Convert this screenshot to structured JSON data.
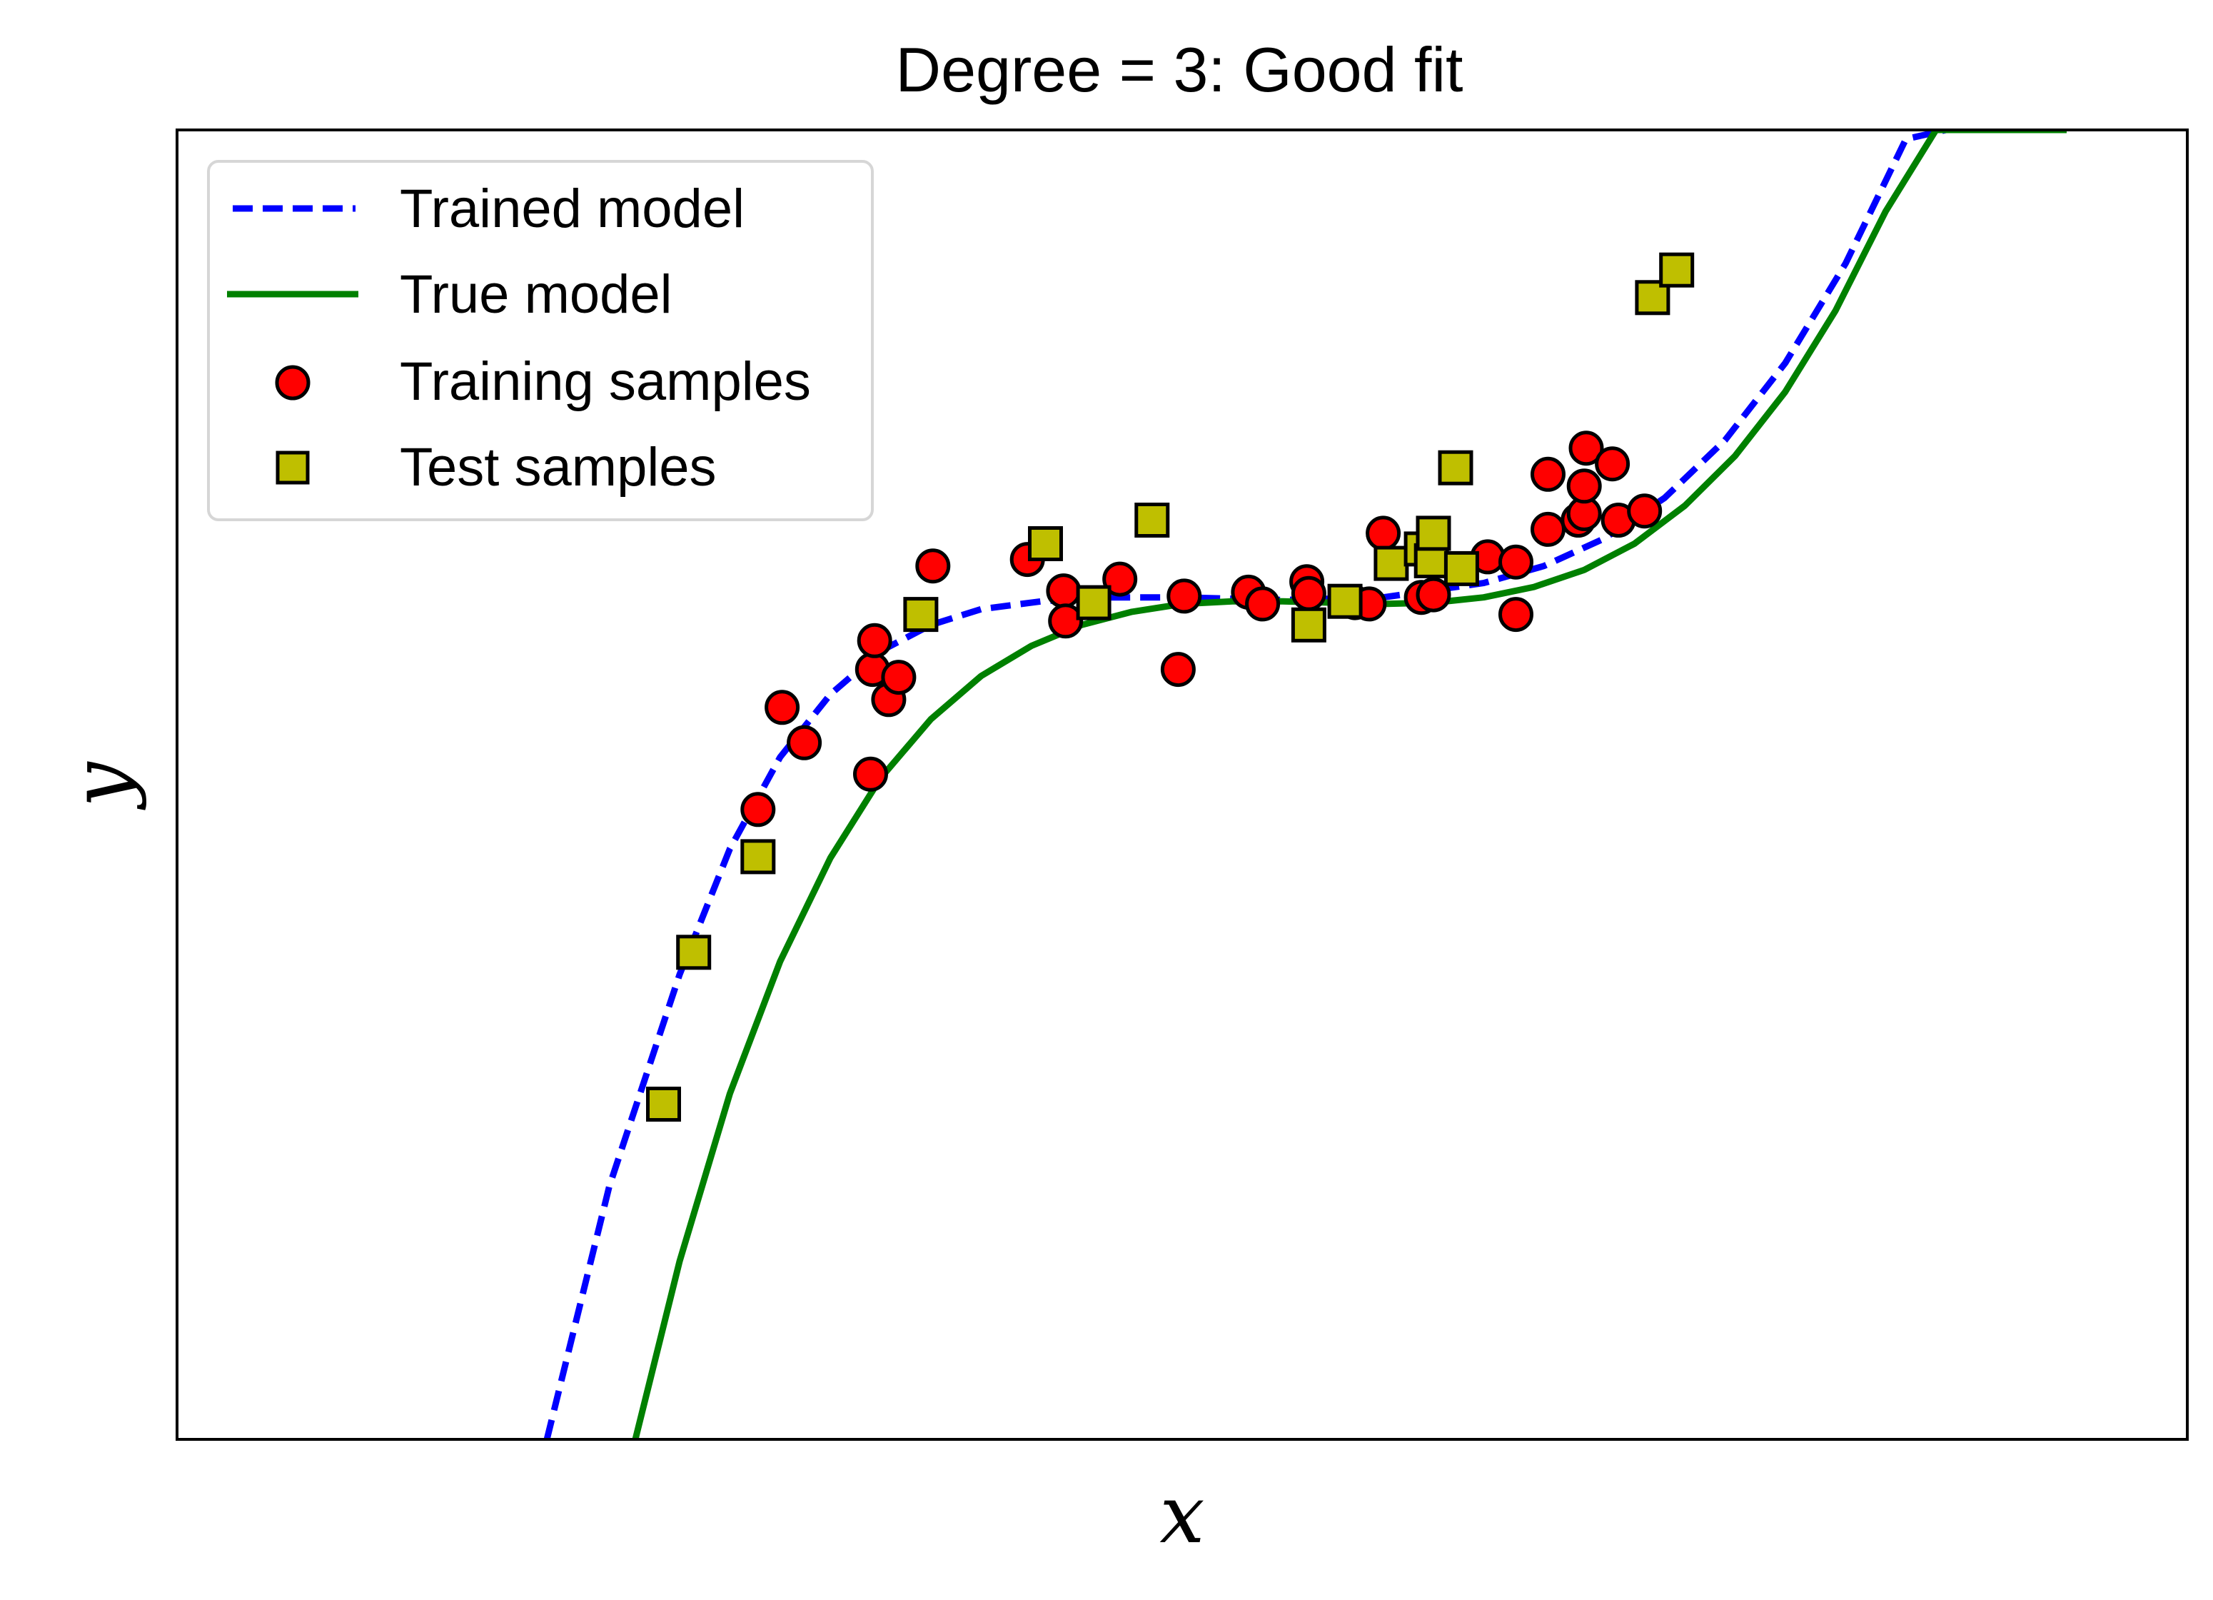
{
  "chart_data": {
    "type": "scatter",
    "title": "Degree = 3: Good fit",
    "xlabel": "x",
    "ylabel": "y",
    "xlim": [
      0,
      1
    ],
    "ylim": [
      0,
      1
    ],
    "grid": false,
    "ticks": false,
    "legend_position": "top-left",
    "series": [
      {
        "name": "Trained model",
        "kind": "line",
        "style": "dashed",
        "color": "#0000ff",
        "x": [
          0.184,
          0.215,
          0.25,
          0.275,
          0.3,
          0.325,
          0.35,
          0.375,
          0.4,
          0.43,
          0.46,
          0.5,
          0.55,
          0.6,
          0.65,
          0.68,
          0.71,
          0.74,
          0.77,
          0.8,
          0.83,
          0.86,
          0.88,
          0.9,
          0.92,
          0.94
        ],
        "y": [
          0.0,
          0.193,
          0.355,
          0.451,
          0.521,
          0.569,
          0.602,
          0.622,
          0.634,
          0.64,
          0.643,
          0.643,
          0.641,
          0.643,
          0.654,
          0.667,
          0.688,
          0.719,
          0.763,
          0.822,
          0.898,
          0.993,
          1.0,
          1.0,
          1.0,
          1.0
        ]
      },
      {
        "name": "True model",
        "kind": "line",
        "style": "solid",
        "color": "#008000",
        "x": [
          0.228,
          0.25,
          0.275,
          0.3,
          0.325,
          0.35,
          0.375,
          0.4,
          0.425,
          0.45,
          0.475,
          0.5,
          0.525,
          0.55,
          0.575,
          0.6,
          0.625,
          0.65,
          0.675,
          0.7,
          0.725,
          0.75,
          0.775,
          0.8,
          0.825,
          0.85,
          0.875,
          0.9,
          0.92,
          0.94
        ],
        "y": [
          0.0,
          0.136,
          0.264,
          0.365,
          0.444,
          0.505,
          0.55,
          0.583,
          0.606,
          0.622,
          0.632,
          0.638,
          0.64,
          0.64,
          0.639,
          0.638,
          0.639,
          0.643,
          0.651,
          0.664,
          0.684,
          0.713,
          0.751,
          0.8,
          0.862,
          0.938,
          1.0,
          1.0,
          1.0,
          1.0
        ]
      },
      {
        "name": "Training samples",
        "kind": "scatter",
        "marker": "circle",
        "color": "#ff0000",
        "x": [
          0.289,
          0.301,
          0.312,
          0.345,
          0.346,
          0.347,
          0.354,
          0.359,
          0.376,
          0.423,
          0.441,
          0.442,
          0.469,
          0.501,
          0.498,
          0.533,
          0.54,
          0.562,
          0.563,
          0.586,
          0.593,
          0.6,
          0.619,
          0.624,
          0.625,
          0.652,
          0.666,
          0.666,
          0.682,
          0.682,
          0.697,
          0.7,
          0.7,
          0.701,
          0.714,
          0.717,
          0.73
        ],
        "y": [
          0.481,
          0.559,
          0.532,
          0.508,
          0.588,
          0.61,
          0.565,
          0.582,
          0.667,
          0.672,
          0.648,
          0.625,
          0.657,
          0.644,
          0.588,
          0.647,
          0.638,
          0.655,
          0.646,
          0.639,
          0.638,
          0.692,
          0.643,
          0.677,
          0.645,
          0.674,
          0.63,
          0.67,
          0.737,
          0.695,
          0.702,
          0.707,
          0.728,
          0.757,
          0.745,
          0.702,
          0.709
        ]
      },
      {
        "name": "Test samples",
        "kind": "scatter",
        "marker": "square",
        "color": "#bfbf00",
        "x": [
          0.242,
          0.257,
          0.289,
          0.37,
          0.432,
          0.456,
          0.485,
          0.563,
          0.581,
          0.604,
          0.619,
          0.624,
          0.639,
          0.625,
          0.636,
          0.734,
          0.746
        ],
        "y": [
          0.256,
          0.372,
          0.445,
          0.63,
          0.684,
          0.639,
          0.702,
          0.622,
          0.64,
          0.669,
          0.68,
          0.671,
          0.665,
          0.692,
          0.742,
          0.872,
          0.893
        ]
      }
    ]
  }
}
